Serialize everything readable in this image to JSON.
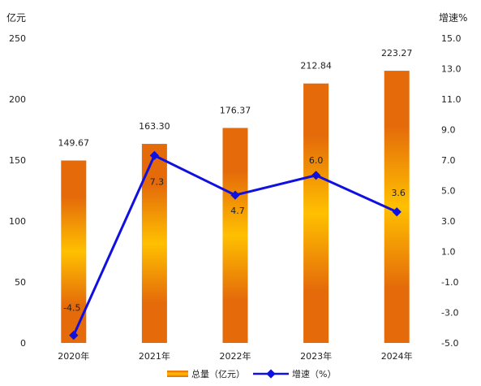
{
  "chart_data": {
    "type": "bar",
    "categories": [
      "2020年",
      "2021年",
      "2022年",
      "2023年",
      "2024年"
    ],
    "series": [
      {
        "name": "总量（亿元）",
        "type": "bar",
        "axis": "left",
        "values": [
          149.67,
          163.3,
          176.37,
          212.84,
          223.27
        ],
        "labels": [
          "149.67",
          "163.30",
          "176.37",
          "212.84",
          "223.27"
        ],
        "color": "#E46A0A",
        "highlight": "#FFC000"
      },
      {
        "name": "增速（%）",
        "type": "line",
        "axis": "right",
        "values": [
          -4.5,
          7.3,
          4.7,
          6.0,
          3.6
        ],
        "labels": [
          "-4.5",
          "7.3",
          "4.7",
          "6.0",
          "3.6"
        ],
        "color": "#1010E0"
      }
    ],
    "ylabel": "亿元",
    "y2label": "增速%",
    "ylim": [
      0,
      250
    ],
    "y2lim": [
      -5.0,
      15.0
    ],
    "yticks": [
      "0",
      "50",
      "100",
      "150",
      "200",
      "250"
    ],
    "y2ticks": [
      "-5.0",
      "-3.0",
      "-1.0",
      "1.0",
      "3.0",
      "5.0",
      "7.0",
      "9.0",
      "11.0",
      "13.0",
      "15.0"
    ],
    "grid": false,
    "legend": "bottom"
  }
}
